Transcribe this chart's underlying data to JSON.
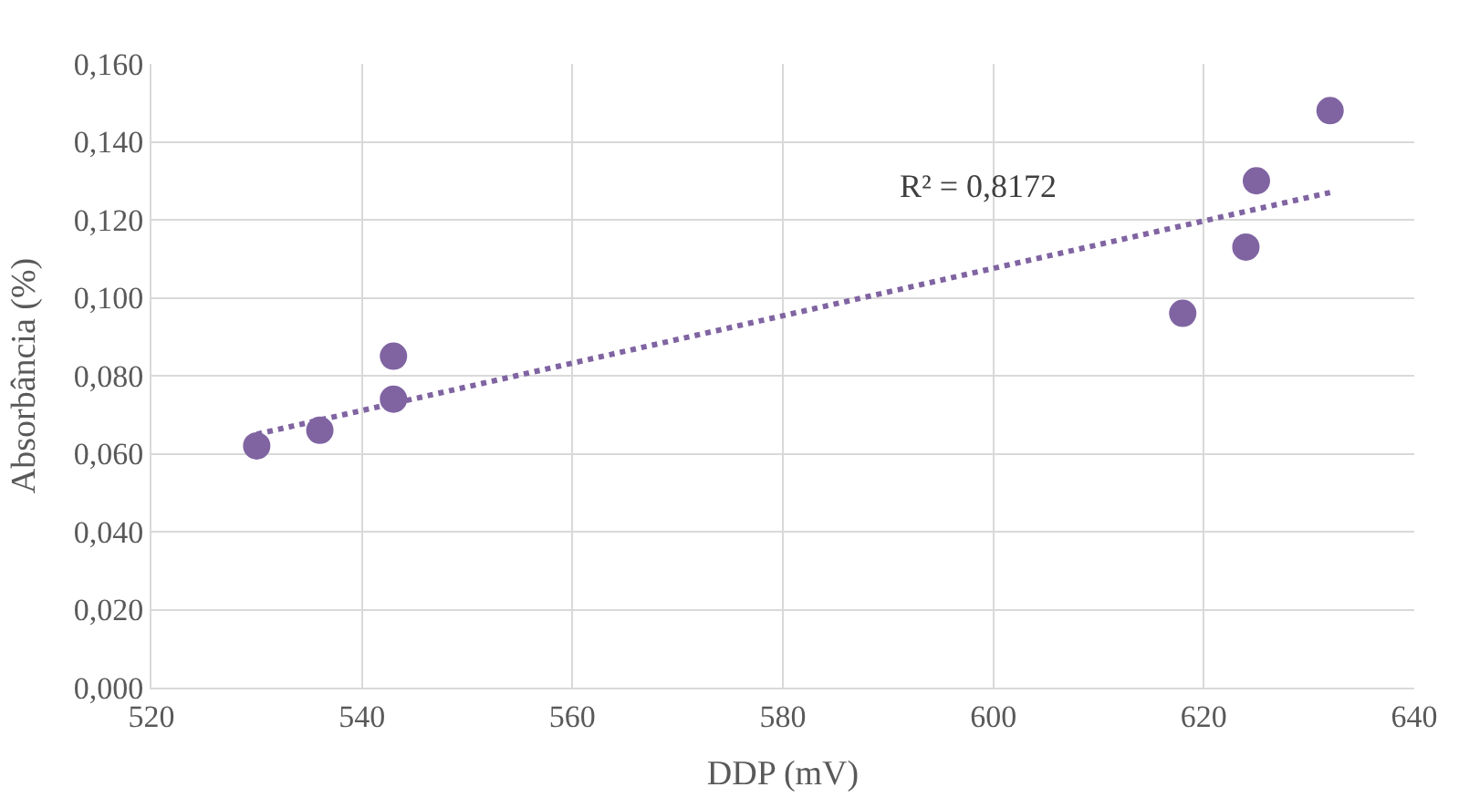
{
  "chart_data": {
    "type": "scatter",
    "xlabel": "DDP (mV)",
    "ylabel": "Absorbância (%)",
    "series": [
      {
        "color": "#8064a2",
        "marker": "circle",
        "x": [
          530,
          536,
          543,
          543,
          618,
          624,
          625,
          632
        ],
        "values": [
          0.062,
          0.066,
          0.085,
          0.074,
          0.096,
          0.113,
          0.13,
          0.148
        ]
      },
      {
        "type": "line",
        "color": "#8064a2",
        "marker": "none",
        "line_style": "dotted",
        "x": [
          530,
          632
        ],
        "values": [
          0.065,
          0.127
        ]
      }
    ],
    "annotations": [
      "R² = 0,8172"
    ],
    "xlim": [
      520,
      640
    ],
    "xticks": [
      520,
      540,
      560,
      580,
      600,
      620,
      640
    ],
    "ylim": [
      0,
      0.16
    ],
    "yticks": [
      {
        "value": 0,
        "label": "0,000"
      },
      {
        "value": 0.02,
        "label": "0,020"
      },
      {
        "value": 0.04,
        "label": "0,040"
      },
      {
        "value": 0.06,
        "label": "0,060"
      },
      {
        "value": 0.08,
        "label": "0,080"
      },
      {
        "value": 0.1,
        "label": "0,100"
      },
      {
        "value": 0.12,
        "label": "0,120"
      },
      {
        "value": 0.14,
        "label": "0,140"
      },
      {
        "value": 0.16,
        "label": "0,160"
      }
    ],
    "grid": true
  }
}
